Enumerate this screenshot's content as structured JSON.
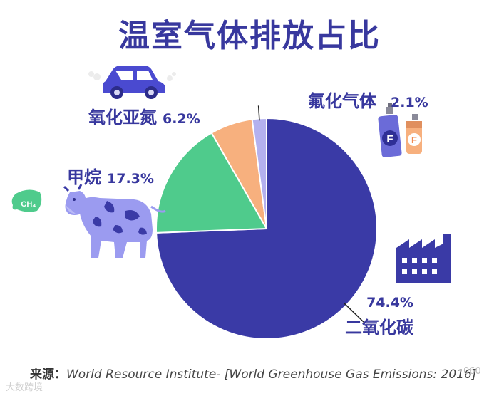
{
  "chart_data": {
    "type": "pie",
    "title": "温室气体排放占比",
    "slices": [
      {
        "label": "二氧化碳",
        "value": 74.4,
        "value_label": "74.4%",
        "color": "#3a3aa6"
      },
      {
        "label": "甲烷",
        "value": 17.3,
        "value_label": "17.3%",
        "color": "#4fcb8c"
      },
      {
        "label": "氧化亚氮",
        "value": 6.2,
        "value_label": "6.2%",
        "color": "#f7b07e"
      },
      {
        "label": "氟化气体",
        "value": 2.1,
        "value_label": "2.1%",
        "color": "#b4b1ee"
      }
    ]
  },
  "source": {
    "label": "来源：",
    "text": "World Resource Institute- [World Greenhouse Gas Emissions: 2016]"
  },
  "icons": {
    "cow_bubble": "CH₄",
    "can_letter": "F"
  },
  "watermark": "大数跨境",
  "watermark_right": "060"
}
